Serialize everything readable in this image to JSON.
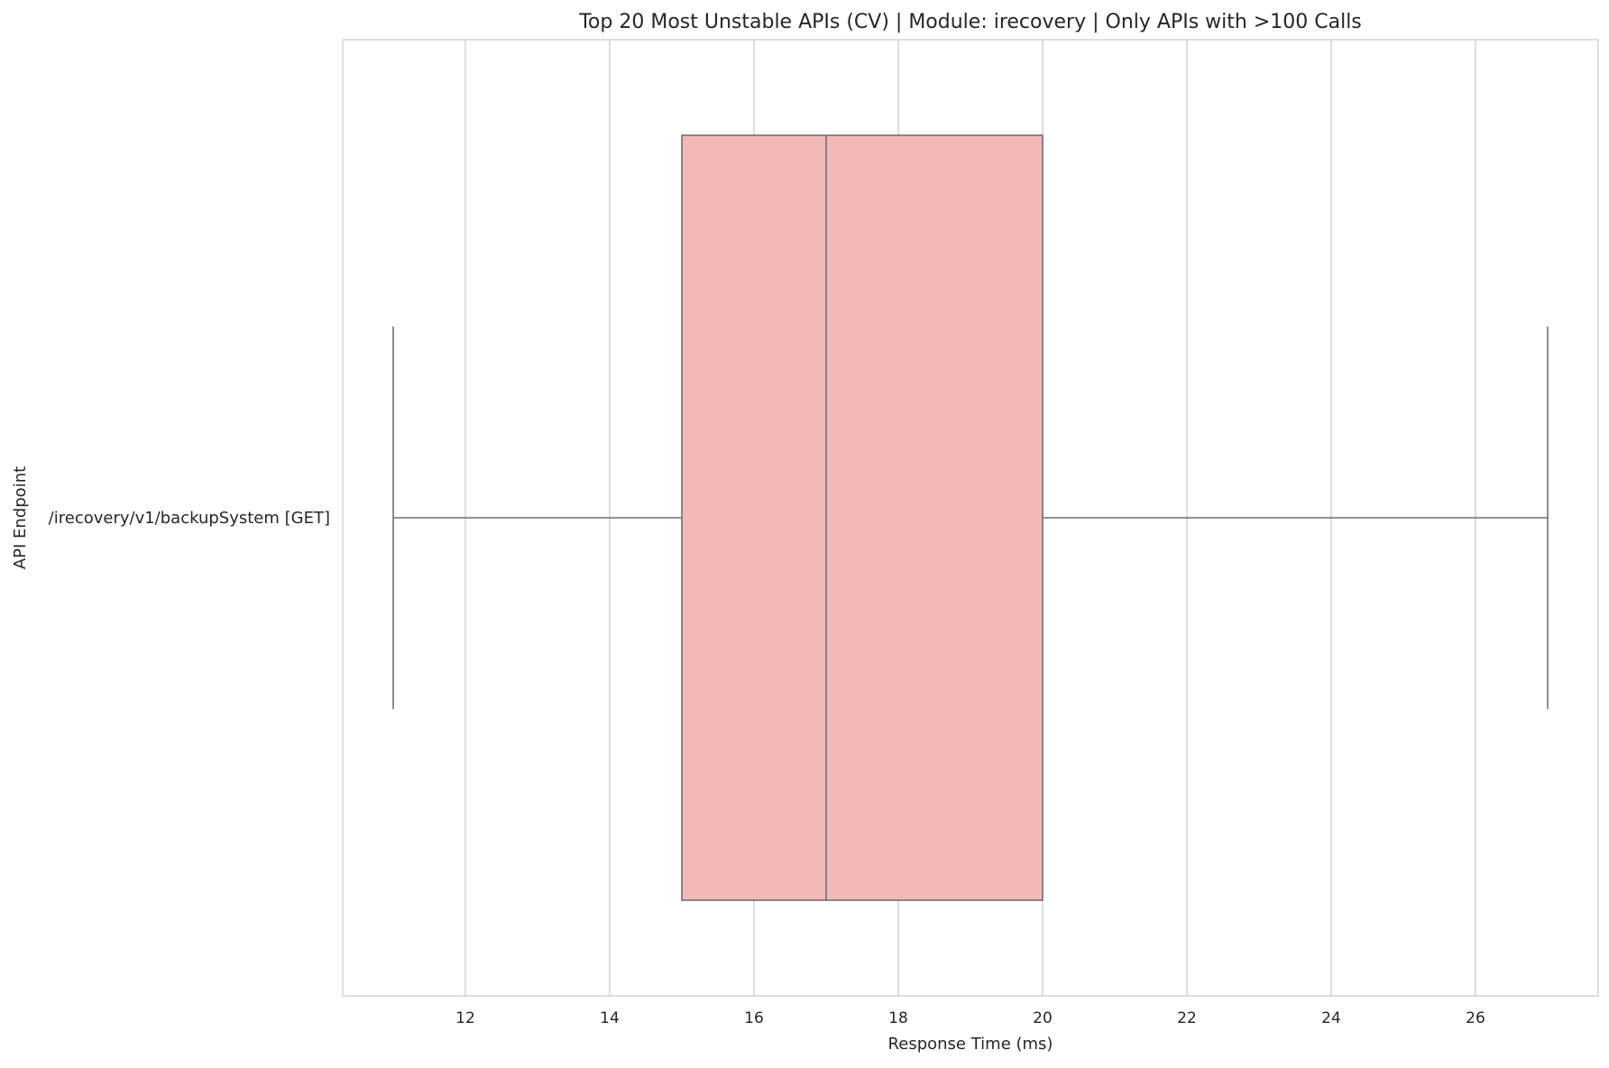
{
  "chart_data": {
    "type": "boxplot",
    "orientation": "horizontal",
    "title": "Top 20 Most Unstable APIs (CV) | Module: irecovery | Only APIs with >100 Calls",
    "xlabel": "Response Time (ms)",
    "ylabel": "API Endpoint",
    "xlim": [
      10.3,
      27.7
    ],
    "xticks": [
      12,
      14,
      16,
      18,
      20,
      22,
      24,
      26
    ],
    "grid": true,
    "categories": [
      "/irecovery/v1/backupSystem [GET]"
    ],
    "boxes": [
      {
        "category": "/irecovery/v1/backupSystem [GET]",
        "whisker_low": 11,
        "q1": 15,
        "median": 17,
        "q3": 20,
        "whisker_high": 27,
        "color": "#f2b9b6"
      }
    ]
  }
}
